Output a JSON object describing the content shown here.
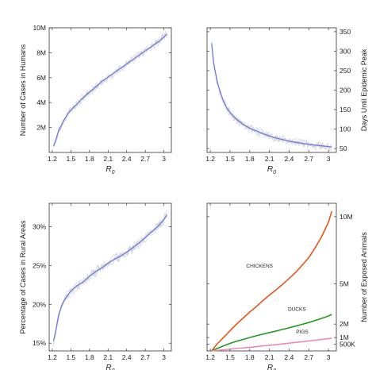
{
  "chart_data": [
    {
      "id": "top-left",
      "type": "line",
      "xlabel": "R",
      "xlabel_sub": "0",
      "ylabel": "Number of Cases in Humans",
      "y_axis_side": "left",
      "xlim": [
        1.15,
        3.12
      ],
      "ylim": [
        0,
        10000000
      ],
      "xticks": [
        1.2,
        1.5,
        1.8,
        2.1,
        2.4,
        2.7,
        3
      ],
      "xtick_labels": [
        "1.2",
        "1.5",
        "1.8",
        "2.1",
        "2.4",
        "2.7",
        "3"
      ],
      "yticks": [
        2000000,
        4000000,
        6000000,
        8000000,
        10000000
      ],
      "ytick_labels": [
        "2M",
        "4M",
        "6M",
        "8M",
        "10M"
      ],
      "band": true,
      "series": [
        {
          "color": "#6f7ddb",
          "x": [
            1.22,
            1.25,
            1.3,
            1.35,
            1.4,
            1.45,
            1.5,
            1.6,
            1.7,
            1.8,
            1.9,
            2.0,
            2.1,
            2.2,
            2.3,
            2.4,
            2.5,
            2.6,
            2.7,
            2.8,
            2.9,
            3.0,
            3.05
          ],
          "y": [
            500000,
            900000,
            1700000,
            2200000,
            2700000,
            3100000,
            3400000,
            3900000,
            4400000,
            4850000,
            5250000,
            5700000,
            6050000,
            6400000,
            6750000,
            7100000,
            7450000,
            7800000,
            8150000,
            8500000,
            8850000,
            9250000,
            9500000
          ]
        }
      ]
    },
    {
      "id": "top-right",
      "type": "line",
      "xlabel": "R",
      "xlabel_sub": "0",
      "ylabel": "Days Until Epidemic Peak",
      "y_axis_side": "right",
      "xlim": [
        1.15,
        3.12
      ],
      "ylim": [
        40,
        360
      ],
      "xticks": [
        1.2,
        1.5,
        1.8,
        2.1,
        2.4,
        2.7,
        3
      ],
      "xtick_labels": [
        "1.2",
        "1.5",
        "1.8",
        "2.1",
        "2.4",
        "2.7",
        "3"
      ],
      "yticks": [
        50,
        100,
        150,
        200,
        250,
        300,
        350
      ],
      "ytick_labels": [
        "50",
        "100",
        "150",
        "200",
        "250",
        "300",
        "350"
      ],
      "band": true,
      "series": [
        {
          "color": "#6f7ddb",
          "x": [
            1.22,
            1.25,
            1.3,
            1.35,
            1.4,
            1.45,
            1.5,
            1.6,
            1.7,
            1.8,
            1.9,
            2.0,
            2.1,
            2.2,
            2.3,
            2.4,
            2.5,
            2.6,
            2.7,
            2.8,
            2.9,
            3.0,
            3.05
          ],
          "y": [
            320,
            270,
            225,
            195,
            172,
            155,
            142,
            125,
            112,
            102,
            95,
            88,
            82,
            77,
            73,
            69,
            66,
            63,
            61,
            59,
            57,
            55,
            54
          ]
        }
      ]
    },
    {
      "id": "bottom-left",
      "type": "line",
      "xlabel": "R",
      "xlabel_sub": "0",
      "ylabel": "Percentage of Cases in Rural Areas",
      "y_axis_side": "left",
      "xlim": [
        1.15,
        3.12
      ],
      "ylim": [
        14,
        33
      ],
      "xticks": [
        1.2,
        1.5,
        1.8,
        2.1,
        2.4,
        2.7,
        3
      ],
      "xtick_labels": [
        "1.2",
        "1.5",
        "1.8",
        "2.1",
        "2.4",
        "2.7",
        "3"
      ],
      "yticks": [
        15,
        20,
        25,
        30
      ],
      "ytick_labels": [
        "15%",
        "20%",
        "25%",
        "30%"
      ],
      "band": true,
      "series": [
        {
          "color": "#6f7ddb",
          "x": [
            1.22,
            1.25,
            1.3,
            1.35,
            1.4,
            1.45,
            1.5,
            1.6,
            1.7,
            1.8,
            1.9,
            2.0,
            2.1,
            2.2,
            2.3,
            2.4,
            2.5,
            2.6,
            2.7,
            2.8,
            2.9,
            3.0,
            3.05
          ],
          "y": [
            15.3,
            16.3,
            18.5,
            19.8,
            20.6,
            21.2,
            21.7,
            22.4,
            22.9,
            23.6,
            24.2,
            24.7,
            25.3,
            25.8,
            26.2,
            26.7,
            27.3,
            27.9,
            28.6,
            29.3,
            30.0,
            30.9,
            31.5
          ]
        }
      ]
    },
    {
      "id": "bottom-right",
      "type": "line",
      "xlabel": "R",
      "xlabel_sub": "0",
      "ylabel": "Number of Exposed Animals",
      "y_axis_side": "right",
      "xlim": [
        1.15,
        3.12
      ],
      "ylim": [
        0,
        11000000
      ],
      "xticks": [
        1.2,
        1.5,
        1.8,
        2.1,
        2.4,
        2.7,
        3
      ],
      "xtick_labels": [
        "1.2",
        "1.5",
        "1.8",
        "2.1",
        "2.4",
        "2.7",
        "3"
      ],
      "yticks": [
        500000,
        1000000,
        2000000,
        5000000,
        10000000
      ],
      "ytick_labels": [
        "500K",
        "1M",
        "2M",
        "5M",
        "10M"
      ],
      "band": false,
      "series": [
        {
          "name": "CHICKENS",
          "color": "#e8541c",
          "label_at": [
            1.95,
            6200000
          ],
          "x": [
            1.22,
            1.3,
            1.4,
            1.5,
            1.6,
            1.7,
            1.8,
            1.9,
            2.0,
            2.1,
            2.2,
            2.3,
            2.4,
            2.5,
            2.6,
            2.7,
            2.8,
            2.9,
            3.0,
            3.05
          ],
          "y": [
            0,
            500000,
            1000000,
            1500000,
            2000000,
            2450000,
            2900000,
            3300000,
            3750000,
            4150000,
            4550000,
            4950000,
            5400000,
            5850000,
            6400000,
            6950000,
            7700000,
            8550000,
            9600000,
            10400000
          ]
        },
        {
          "name": "DUCKS",
          "color": "#1f9a1f",
          "label_at": [
            2.52,
            3000000
          ],
          "x": [
            1.22,
            1.3,
            1.4,
            1.5,
            1.6,
            1.7,
            1.8,
            1.9,
            2.0,
            2.1,
            2.2,
            2.3,
            2.4,
            2.5,
            2.6,
            2.7,
            2.8,
            2.9,
            3.0,
            3.05
          ],
          "y": [
            0,
            180000,
            380000,
            560000,
            720000,
            860000,
            1000000,
            1130000,
            1250000,
            1370000,
            1480000,
            1600000,
            1720000,
            1850000,
            1980000,
            2120000,
            2270000,
            2430000,
            2600000,
            2720000
          ]
        },
        {
          "name": "PIGS",
          "color": "#f28ab0",
          "label_at": [
            2.6,
            1300000
          ],
          "x": [
            1.22,
            1.4,
            1.6,
            1.8,
            2.0,
            2.2,
            2.4,
            2.6,
            2.8,
            3.0,
            3.05
          ],
          "y": [
            0,
            90000,
            180000,
            270000,
            370000,
            470000,
            580000,
            690000,
            800000,
            920000,
            960000
          ]
        }
      ]
    }
  ]
}
